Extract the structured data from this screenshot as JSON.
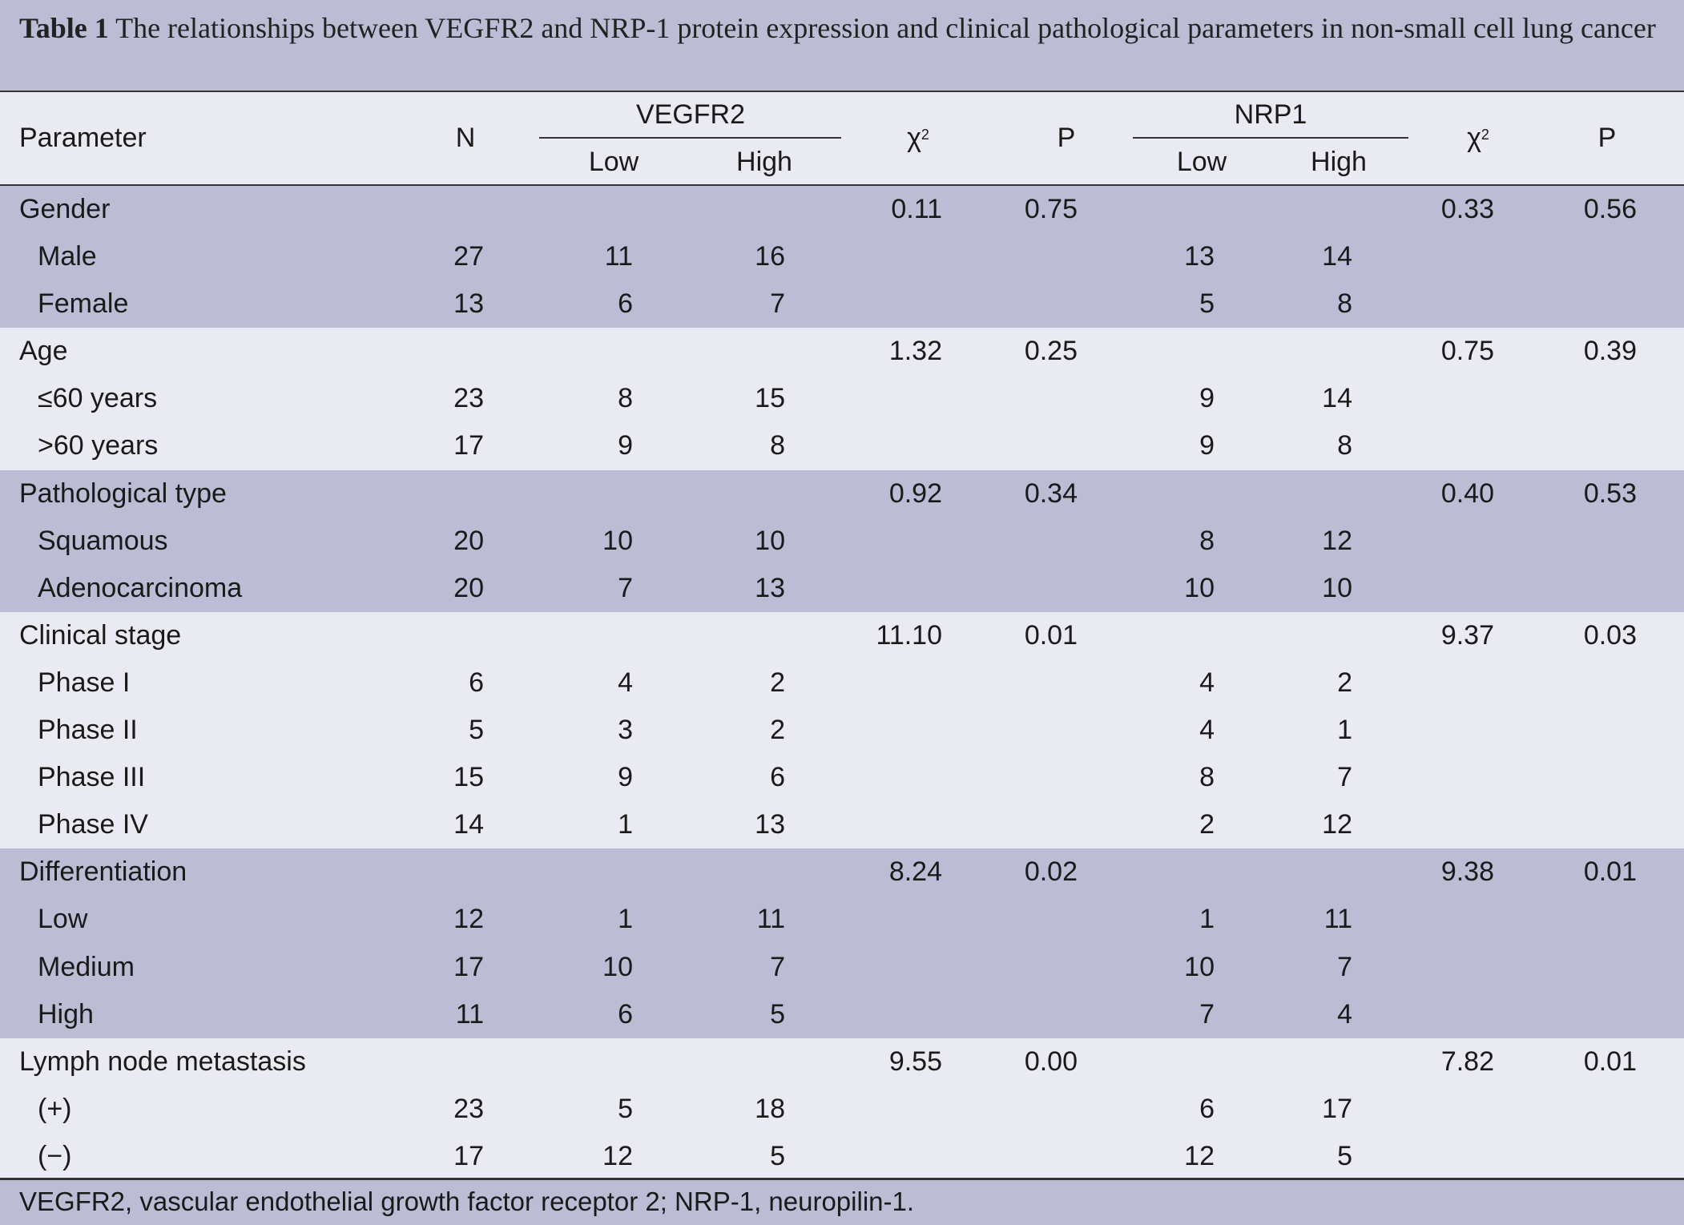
{
  "caption": {
    "label": "Table 1",
    "text": "The relationships between VEGFR2 and NRP-1 protein expression and clinical pathological parameters in non-small cell lung cancer"
  },
  "header": {
    "parameter": "Parameter",
    "n": "N",
    "vegfr2": "VEGFR2",
    "nrp1": "NRP1",
    "low": "Low",
    "high": "High",
    "chi": "χ",
    "chi_sup": "2",
    "p": "P"
  },
  "groups": [
    {
      "label": "Gender",
      "chi1": "0.11",
      "p1": "0.75",
      "chi2": "0.33",
      "p2": "0.56",
      "rows": [
        {
          "label": "Male",
          "n": "27",
          "vl": "11",
          "vh": "16",
          "nl": "13",
          "nh": "14"
        },
        {
          "label": "Female",
          "n": "13",
          "vl": "6",
          "vh": "7",
          "nl": "5",
          "nh": "8"
        }
      ]
    },
    {
      "label": "Age",
      "chi1": "1.32",
      "p1": "0.25",
      "chi2": "0.75",
      "p2": "0.39",
      "rows": [
        {
          "label": "≤60 years",
          "n": "23",
          "vl": "8",
          "vh": "15",
          "nl": "9",
          "nh": "14"
        },
        {
          "label": ">60 years",
          "n": "17",
          "vl": "9",
          "vh": "8",
          "nl": "9",
          "nh": "8"
        }
      ]
    },
    {
      "label": "Pathological type",
      "chi1": "0.92",
      "p1": "0.34",
      "chi2": "0.40",
      "p2": "0.53",
      "rows": [
        {
          "label": "Squamous",
          "n": "20",
          "vl": "10",
          "vh": "10",
          "nl": "8",
          "nh": "12"
        },
        {
          "label": "Adenocarcinoma",
          "n": "20",
          "vl": "7",
          "vh": "13",
          "nl": "10",
          "nh": "10"
        }
      ]
    },
    {
      "label": "Clinical stage",
      "chi1": "11.10",
      "p1": "0.01",
      "chi2": "9.37",
      "p2": "0.03",
      "rows": [
        {
          "label": "Phase I",
          "n": "6",
          "vl": "4",
          "vh": "2",
          "nl": "4",
          "nh": "2"
        },
        {
          "label": "Phase II",
          "n": "5",
          "vl": "3",
          "vh": "2",
          "nl": "4",
          "nh": "1"
        },
        {
          "label": "Phase III",
          "n": "15",
          "vl": "9",
          "vh": "6",
          "nl": "8",
          "nh": "7"
        },
        {
          "label": "Phase IV",
          "n": "14",
          "vl": "1",
          "vh": "13",
          "nl": "2",
          "nh": "12"
        }
      ]
    },
    {
      "label": "Differentiation",
      "chi1": "8.24",
      "p1": "0.02",
      "chi2": "9.38",
      "p2": "0.01",
      "rows": [
        {
          "label": "Low",
          "n": "12",
          "vl": "1",
          "vh": "11",
          "nl": "1",
          "nh": "11"
        },
        {
          "label": "Medium",
          "n": "17",
          "vl": "10",
          "vh": "7",
          "nl": "10",
          "nh": "7"
        },
        {
          "label": "High",
          "n": "11",
          "vl": "6",
          "vh": "5",
          "nl": "7",
          "nh": "4"
        }
      ]
    },
    {
      "label": "Lymph node metastasis",
      "chi1": "9.55",
      "p1": "0.00",
      "chi2": "7.82",
      "p2": "0.01",
      "rows": [
        {
          "label": "(+)",
          "n": "23",
          "vl": "5",
          "vh": "18",
          "nl": "6",
          "nh": "17"
        },
        {
          "label": "(−)",
          "n": "17",
          "vl": "12",
          "vh": "5",
          "nl": "12",
          "nh": "5"
        }
      ]
    }
  ],
  "footnote": "VEGFR2, vascular endothelial growth factor receptor 2; NRP-1, neuropilin-1.",
  "colors": {
    "band_dark": "#bcbdd4",
    "band_light": "#eaebf2",
    "rule": "#333333"
  }
}
